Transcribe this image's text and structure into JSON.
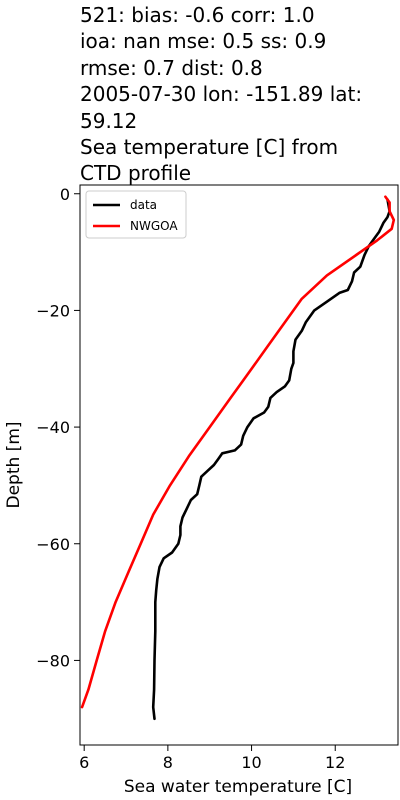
{
  "title_lines": [
    "521: bias: -0.6  corr: 1.0",
    "ioa: nan  mse: 0.5  ss: 0.9",
    "rmse: 0.7  dist: 0.8",
    "2005-07-30 lon: -151.89 lat:",
    "59.12",
    "Sea temperature [C] from",
    "CTD profile"
  ],
  "chart_data": {
    "type": "line",
    "title": "521: bias: -0.6  corr: 1.0 ioa: nan  mse: 0.5  ss: 0.9 rmse: 0.7  dist: 0.8 2005-07-30 lon: -151.89 lat: 59.12 Sea temperature [C] from CTD profile",
    "xlabel": "Sea water temperature [C]",
    "ylabel": "Depth [m]",
    "xlim": [
      5.9,
      13.5
    ],
    "ylim": [
      -94.5,
      1.5
    ],
    "x_ticks": [
      6,
      8,
      10,
      12
    ],
    "y_ticks": [
      0,
      -20,
      -40,
      -60,
      -80
    ],
    "grid": false,
    "legend_position": "upper left",
    "series": [
      {
        "name": "data",
        "color": "#000000",
        "points": [
          [
            13.25,
            -1
          ],
          [
            13.3,
            -3
          ],
          [
            13.25,
            -4
          ],
          [
            13.15,
            -5
          ],
          [
            13.05,
            -6.5
          ],
          [
            12.95,
            -7.5
          ],
          [
            12.8,
            -9
          ],
          [
            12.7,
            -10.5
          ],
          [
            12.6,
            -12.5
          ],
          [
            12.45,
            -13.5
          ],
          [
            12.4,
            -15
          ],
          [
            12.3,
            -16.5
          ],
          [
            12.1,
            -17
          ],
          [
            11.8,
            -18.5
          ],
          [
            11.5,
            -20
          ],
          [
            11.3,
            -22
          ],
          [
            11.2,
            -23.5
          ],
          [
            11.05,
            -25
          ],
          [
            11.0,
            -27
          ],
          [
            11.0,
            -29
          ],
          [
            10.95,
            -30
          ],
          [
            10.9,
            -32
          ],
          [
            10.8,
            -33
          ],
          [
            10.6,
            -34
          ],
          [
            10.45,
            -35
          ],
          [
            10.4,
            -36.5
          ],
          [
            10.3,
            -37.5
          ],
          [
            10.05,
            -38.5
          ],
          [
            9.9,
            -40
          ],
          [
            9.8,
            -41.5
          ],
          [
            9.75,
            -43
          ],
          [
            9.6,
            -44
          ],
          [
            9.3,
            -44.5
          ],
          [
            9.2,
            -45.5
          ],
          [
            9.1,
            -46.5
          ],
          [
            8.95,
            -47.5
          ],
          [
            8.8,
            -48.5
          ],
          [
            8.75,
            -50
          ],
          [
            8.7,
            -51.5
          ],
          [
            8.55,
            -52.5
          ],
          [
            8.45,
            -54
          ],
          [
            8.35,
            -55.5
          ],
          [
            8.3,
            -57
          ],
          [
            8.3,
            -58.5
          ],
          [
            8.25,
            -60
          ],
          [
            8.1,
            -61.5
          ],
          [
            7.9,
            -62.5
          ],
          [
            7.8,
            -64
          ],
          [
            7.75,
            -66
          ],
          [
            7.72,
            -68
          ],
          [
            7.7,
            -70
          ],
          [
            7.7,
            -75
          ],
          [
            7.68,
            -80
          ],
          [
            7.67,
            -85
          ],
          [
            7.65,
            -88
          ],
          [
            7.68,
            -90
          ]
        ]
      },
      {
        "name": "NWGOA",
        "color": "#ff0000",
        "points": [
          [
            13.2,
            -0.5
          ],
          [
            13.3,
            -1.5
          ],
          [
            13.3,
            -3
          ],
          [
            13.4,
            -4.5
          ],
          [
            13.35,
            -6
          ],
          [
            13.0,
            -8
          ],
          [
            12.5,
            -10.5
          ],
          [
            11.8,
            -14
          ],
          [
            11.2,
            -18
          ],
          [
            10.8,
            -22
          ],
          [
            10.4,
            -26
          ],
          [
            10.0,
            -30
          ],
          [
            9.5,
            -35
          ],
          [
            9.0,
            -40
          ],
          [
            8.5,
            -45
          ],
          [
            8.05,
            -50
          ],
          [
            7.65,
            -55
          ],
          [
            7.35,
            -60
          ],
          [
            7.05,
            -65
          ],
          [
            6.75,
            -70
          ],
          [
            6.5,
            -75
          ],
          [
            6.3,
            -80
          ],
          [
            6.1,
            -85
          ],
          [
            5.95,
            -88
          ]
        ]
      }
    ]
  }
}
